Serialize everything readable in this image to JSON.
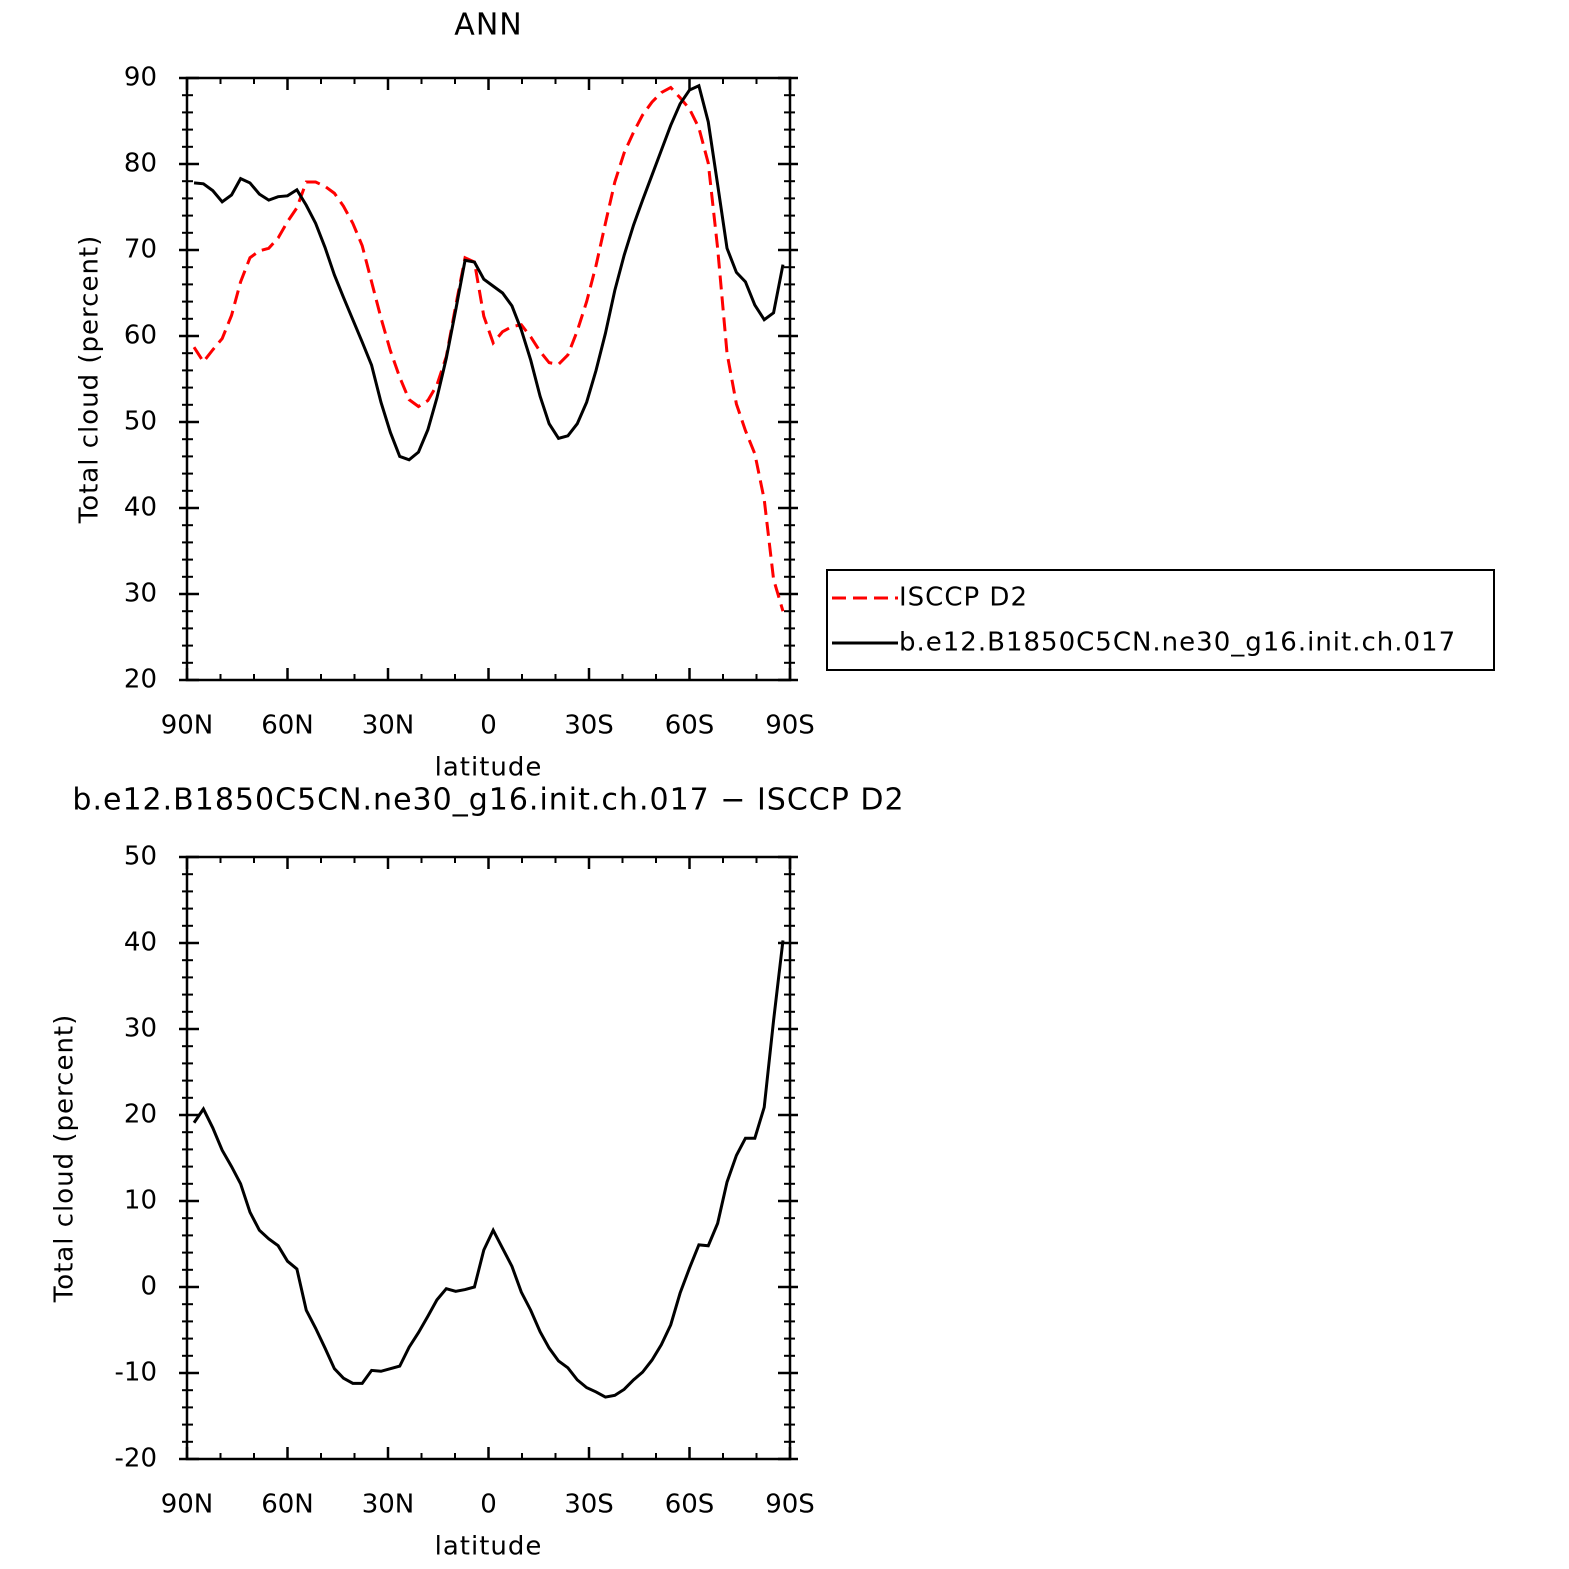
{
  "chart_data": [
    {
      "type": "line",
      "title": "ANN",
      "xlabel": "latitude",
      "ylabel": "Total cloud (percent)",
      "x": [
        87.9,
        85.1,
        82.3,
        79.5,
        76.7,
        74.0,
        71.2,
        68.4,
        65.6,
        62.8,
        60.0,
        57.2,
        54.4,
        51.6,
        48.8,
        46.0,
        43.3,
        40.5,
        37.7,
        34.9,
        32.1,
        29.3,
        26.5,
        23.7,
        20.9,
        18.1,
        15.4,
        12.6,
        9.8,
        7.0,
        4.2,
        1.4,
        -1.4,
        -4.2,
        -7.0,
        -9.8,
        -12.6,
        -15.4,
        -18.1,
        -20.9,
        -23.7,
        -26.5,
        -29.3,
        -32.1,
        -34.9,
        -37.7,
        -40.5,
        -43.3,
        -46.0,
        -48.8,
        -51.6,
        -54.4,
        -57.2,
        -60.0,
        -62.8,
        -65.6,
        -68.4,
        -71.2,
        -74.0,
        -76.7,
        -79.5,
        -82.3,
        -85.1,
        -87.9
      ],
      "series": [
        {
          "name": "ISCCP D2",
          "color": "#ff0000",
          "dashed": true,
          "values": [
            58.7,
            57.0,
            58.4,
            59.7,
            62.4,
            66.3,
            69.1,
            69.9,
            70.2,
            71.4,
            73.3,
            74.9,
            77.9,
            77.9,
            77.4,
            76.6,
            75.1,
            73.1,
            70.5,
            66.3,
            62.1,
            58.3,
            55.2,
            52.6,
            51.8,
            52.5,
            54.3,
            57.6,
            63.5,
            69.1,
            68.6,
            62.3,
            59.2,
            60.5,
            61.1,
            61.3,
            59.9,
            58.2,
            56.9,
            56.7,
            57.8,
            60.6,
            64.0,
            68.2,
            73.1,
            77.9,
            81.3,
            83.7,
            85.7,
            87.2,
            88.3,
            88.9,
            87.7,
            86.4,
            84.2,
            80.1,
            70.2,
            58.0,
            52.1,
            49.0,
            46.3,
            41.0,
            31.7,
            28.0
          ]
        },
        {
          "name": "b.e12.B1850C5CN.ne30_g16.init.ch.017",
          "color": "#000000",
          "dashed": false,
          "values": [
            77.8,
            77.7,
            76.9,
            75.6,
            76.4,
            78.3,
            77.8,
            76.5,
            75.8,
            76.2,
            76.3,
            77.0,
            75.2,
            73.1,
            70.3,
            67.1,
            64.5,
            61.9,
            59.3,
            56.6,
            52.3,
            48.8,
            46.0,
            45.6,
            46.5,
            49.1,
            52.8,
            57.4,
            63.0,
            68.8,
            68.6,
            66.6,
            65.8,
            65.0,
            63.5,
            60.7,
            57.2,
            53.0,
            49.8,
            48.1,
            48.4,
            49.8,
            52.3,
            56.0,
            60.3,
            65.3,
            69.4,
            72.9,
            75.8,
            78.7,
            81.6,
            84.5,
            87.0,
            88.6,
            89.1,
            84.9,
            77.6,
            70.2,
            67.4,
            66.3,
            63.6,
            61.9,
            62.7,
            68.3
          ]
        }
      ],
      "xlim": [
        90,
        -90
      ],
      "xticks": [
        {
          "value": 90,
          "label": "90N"
        },
        {
          "value": 60,
          "label": "60N"
        },
        {
          "value": 30,
          "label": "30N"
        },
        0,
        {
          "value": -30,
          "label": "30S"
        },
        {
          "value": -60,
          "label": "60S"
        },
        {
          "value": -90,
          "label": "90S"
        }
      ],
      "ylim": [
        20,
        90
      ],
      "yticks": [
        20,
        30,
        40,
        50,
        60,
        70,
        80,
        90
      ],
      "legend": "right"
    },
    {
      "type": "line",
      "title": "b.e12.B1850C5CN.ne30_g16.init.ch.017 − ISCCP D2",
      "xlabel": "latitude",
      "ylabel": "Total cloud (percent)",
      "x": [
        87.9,
        85.1,
        82.3,
        79.5,
        76.7,
        74.0,
        71.2,
        68.4,
        65.6,
        62.8,
        60.0,
        57.2,
        54.4,
        51.6,
        48.8,
        46.0,
        43.3,
        40.5,
        37.7,
        34.9,
        32.1,
        29.3,
        26.5,
        23.7,
        20.9,
        18.1,
        15.4,
        12.6,
        9.8,
        7.0,
        4.2,
        1.4,
        -1.4,
        -4.2,
        -7.0,
        -9.8,
        -12.6,
        -15.4,
        -18.1,
        -20.9,
        -23.7,
        -26.5,
        -29.3,
        -32.1,
        -34.9,
        -37.7,
        -40.5,
        -43.3,
        -46.0,
        -48.8,
        -51.6,
        -54.4,
        -57.2,
        -60.0,
        -62.8,
        -65.6,
        -68.4,
        -71.2,
        -74.0,
        -76.7,
        -79.5,
        -82.3,
        -85.1,
        -87.9
      ],
      "values": [
        19.1,
        20.7,
        18.5,
        15.9,
        14.0,
        12.0,
        8.7,
        6.6,
        5.6,
        4.8,
        3.0,
        2.1,
        -2.7,
        -4.8,
        -7.1,
        -9.5,
        -10.6,
        -11.2,
        -11.2,
        -9.7,
        -9.8,
        -9.5,
        -9.2,
        -7.0,
        -5.3,
        -3.4,
        -1.5,
        -0.2,
        -0.5,
        -0.3,
        0.0,
        4.3,
        6.6,
        4.5,
        2.4,
        -0.6,
        -2.7,
        -5.2,
        -7.1,
        -8.6,
        -9.4,
        -10.8,
        -11.7,
        -12.2,
        -12.8,
        -12.6,
        -11.9,
        -10.8,
        -9.9,
        -8.5,
        -6.7,
        -4.4,
        -0.7,
        2.2,
        4.9,
        4.8,
        7.4,
        12.2,
        15.3,
        17.3,
        17.3,
        20.9,
        31.0,
        40.3
      ],
      "color": "#000000",
      "xlim": [
        90,
        -90
      ],
      "xticks": [
        {
          "value": 90,
          "label": "90N"
        },
        {
          "value": 60,
          "label": "60N"
        },
        {
          "value": 30,
          "label": "30N"
        },
        0,
        {
          "value": -30,
          "label": "30S"
        },
        {
          "value": -60,
          "label": "60S"
        },
        {
          "value": -90,
          "label": "90S"
        }
      ],
      "ylim": [
        -20,
        50
      ],
      "yticks": [
        -20,
        -10,
        0,
        10,
        20,
        30,
        40,
        50
      ]
    }
  ]
}
